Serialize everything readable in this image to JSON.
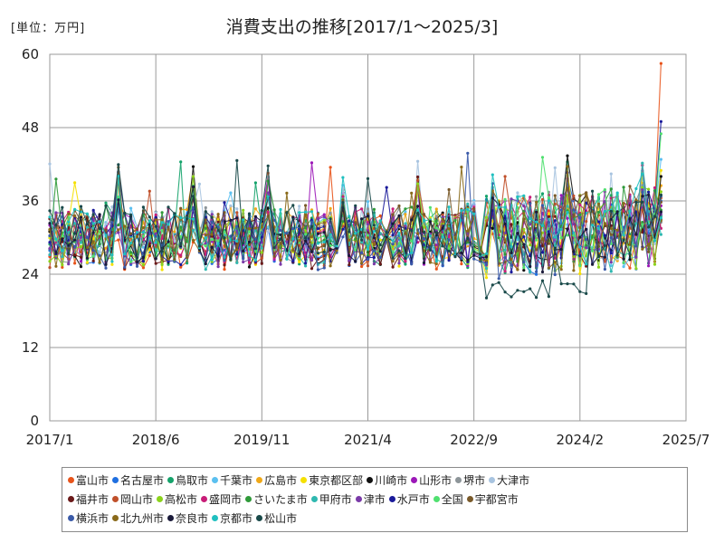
{
  "chart_data": {
    "type": "line",
    "title": "消費支出の推移[2017/1〜2025/3]",
    "unit": "[単位：万円]",
    "xlabel": "",
    "ylabel": "",
    "ylim": [
      0,
      60
    ],
    "yticks": [
      "0",
      "12",
      "24",
      "36",
      "48",
      "60"
    ],
    "yticks_values": [
      0,
      12,
      24,
      36,
      48,
      60
    ],
    "xticks": [
      "2017/1",
      "2018/6",
      "2019/11",
      "2021/4",
      "2022/9",
      "2024/2",
      "2025/7"
    ],
    "x_start_month": 0,
    "x_end_month": 102,
    "grid": true,
    "legend_position": "bottom",
    "series": [
      {
        "name": "富山市",
        "color": "#e8541b",
        "last": 58.5
      },
      {
        "name": "名古屋市",
        "color": "#1f6fe0",
        "last": 36.0
      },
      {
        "name": "鳥取市",
        "color": "#15a36b",
        "last": 33.5
      },
      {
        "name": "千葉市",
        "color": "#5bc0f0",
        "last": 42.8
      },
      {
        "name": "広島市",
        "color": "#f0a818",
        "last": 38.5
      },
      {
        "name": "東京都区部",
        "color": "#f5e000",
        "last": 41.0
      },
      {
        "name": "川崎市",
        "color": "#111111",
        "last": 40.0
      },
      {
        "name": "山形市",
        "color": "#9c18b8",
        "last": 35.2
      },
      {
        "name": "堺市",
        "color": "#8d9599",
        "last": 32.5
      },
      {
        "name": "大津市",
        "color": "#a8c4e0",
        "last": 34.0
      },
      {
        "name": "福井市",
        "color": "#6b1a1a",
        "last": 33.0
      },
      {
        "name": "岡山市",
        "color": "#c0502a",
        "last": 36.5
      },
      {
        "name": "高松市",
        "color": "#8cd31c",
        "last": 37.5
      },
      {
        "name": "盛岡市",
        "color": "#c81d78",
        "last": 31.5
      },
      {
        "name": "さいたま市",
        "color": "#2f9a3a",
        "last": 34.5
      },
      {
        "name": "甲府市",
        "color": "#2fb8b0",
        "last": 30.5
      },
      {
        "name": "津市",
        "color": "#7a3aa8",
        "last": 33.8
      },
      {
        "name": "水戸市",
        "color": "#1a1a9a",
        "last": 49.0
      },
      {
        "name": "全国",
        "color": "#50e070",
        "last": 47.0
      },
      {
        "name": "宇都宮市",
        "color": "#7a5a2a",
        "last": 35.8
      },
      {
        "name": "横浜市",
        "color": "#3a5aa8",
        "last": 36.8
      },
      {
        "name": "北九州市",
        "color": "#8a6a1a",
        "last": 32.8
      },
      {
        "name": "奈良市",
        "color": "#1a1a3a",
        "last": 34.2
      },
      {
        "name": "京都市",
        "color": "#20c0c0",
        "last": 33.2
      },
      {
        "name": "松山市",
        "color": "#1a4a4a",
        "last": 37.0
      }
    ]
  }
}
